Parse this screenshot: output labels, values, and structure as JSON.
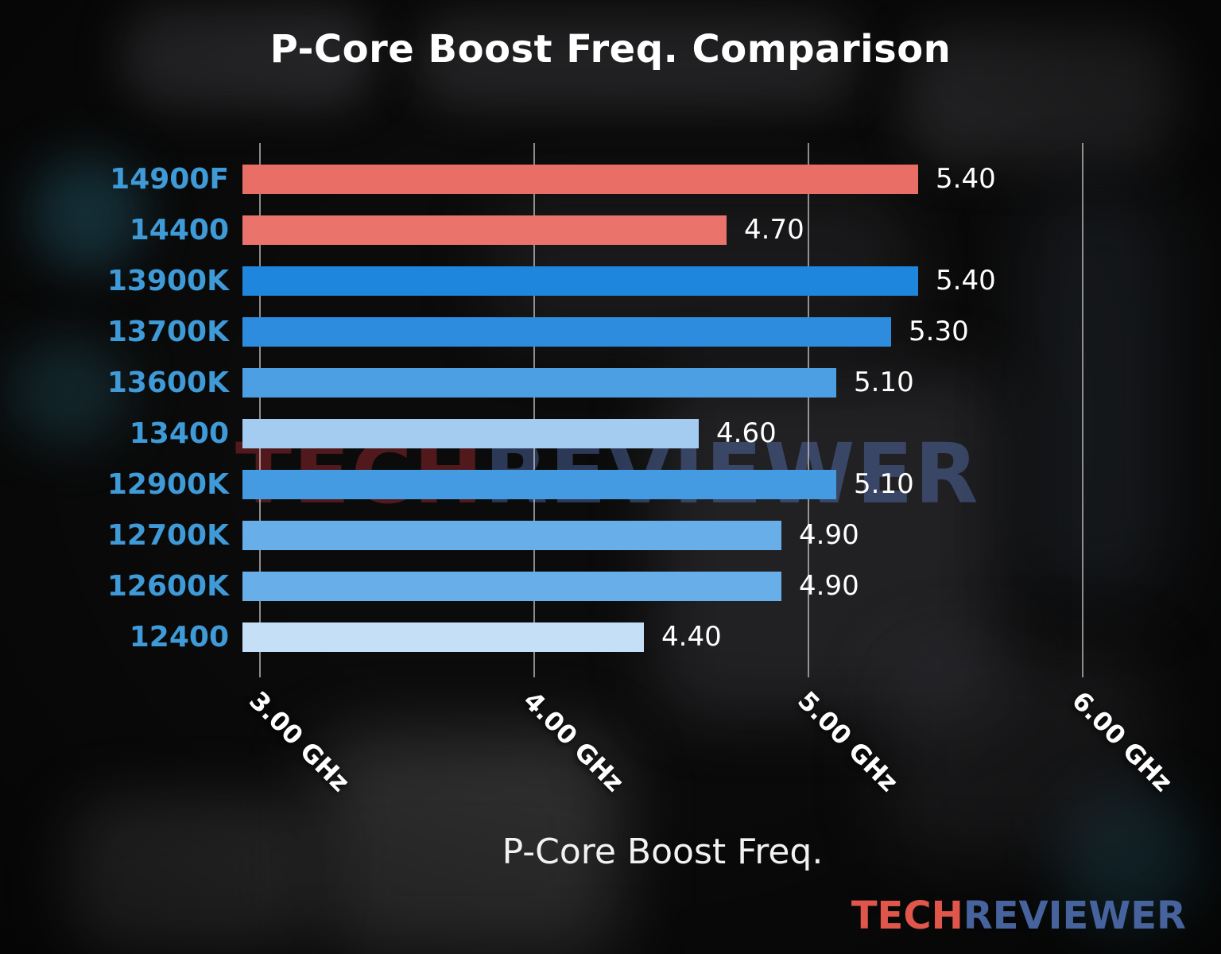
{
  "chart_data": {
    "type": "bar",
    "orientation": "horizontal",
    "title": "P-Core Boost Freq. Comparison",
    "xlabel": "P-Core Boost Freq.",
    "categories": [
      "14900F",
      "14400",
      "13900K",
      "13700K",
      "13600K",
      "13400",
      "12900K",
      "12700K",
      "12600K",
      "12400"
    ],
    "values": [
      5.4,
      4.7,
      5.4,
      5.3,
      5.1,
      4.6,
      5.1,
      4.9,
      4.9,
      4.4
    ],
    "value_labels": [
      "5.40",
      "4.70",
      "5.40",
      "5.30",
      "5.10",
      "4.60",
      "5.10",
      "4.90",
      "4.90",
      "4.40"
    ],
    "bar_colors": [
      "#e96f66",
      "#ea746c",
      "#1f86dd",
      "#2e8cdf",
      "#4d9fe4",
      "#a4cbf0",
      "#459be2",
      "#68aee8",
      "#68aee8",
      "#c5dff7"
    ],
    "xticks": [
      {
        "value": 3.0,
        "label": "3.00 GHz"
      },
      {
        "value": 4.0,
        "label": "4.00 GHz"
      },
      {
        "value": 5.0,
        "label": "5.00 GHz"
      },
      {
        "value": 6.0,
        "label": "6.00 GHz"
      }
    ],
    "xlim": [
      2.936,
      6.5
    ],
    "grid": true,
    "legend_position": "none"
  },
  "watermark": {
    "tech": "TECH",
    "reviewer": "REVIEWER"
  },
  "brand": {
    "tech": "TECH",
    "reviewer": "REVIEWER"
  },
  "colors": {
    "ylabel": "#3f9ad8",
    "value_label": "#ffffff",
    "title": "#ffffff",
    "xlabel": "#f2f2f2",
    "tick_label": "#ffffff",
    "gridline": "rgba(210,210,210,0.65)",
    "watermark_tech": "rgba(140,38,42,0.55)",
    "watermark_reviewer": "rgba(96,128,200,0.40)",
    "brand_tech": "#e0564b",
    "brand_reviewer": "#47639d"
  }
}
